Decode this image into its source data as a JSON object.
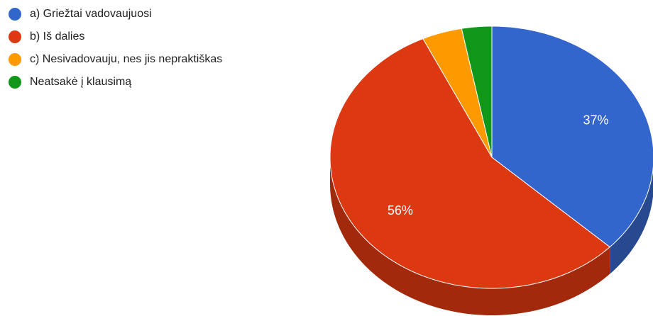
{
  "chart_data": {
    "type": "pie",
    "style": "3d",
    "title": "",
    "legend_position": "top-left",
    "slices": [
      {
        "label": "a) Griežtai vadovaujuosi",
        "value": 37,
        "value_label": "37%",
        "color": "#3366cc",
        "side_color": "#26498f"
      },
      {
        "label": "b) Iš dalies",
        "value": 56,
        "value_label": "56%",
        "color": "#dc3912",
        "side_color": "#a3290c"
      },
      {
        "label": "c) Nesivadovauju, nes jis nepraktiškas",
        "value": 4,
        "value_label": "",
        "color": "#ff9900",
        "side_color": "#c27400"
      },
      {
        "label": "Neatsakė į klausimą",
        "value": 3,
        "value_label": "",
        "color": "#109618",
        "side_color": "#0b6a11"
      }
    ]
  }
}
